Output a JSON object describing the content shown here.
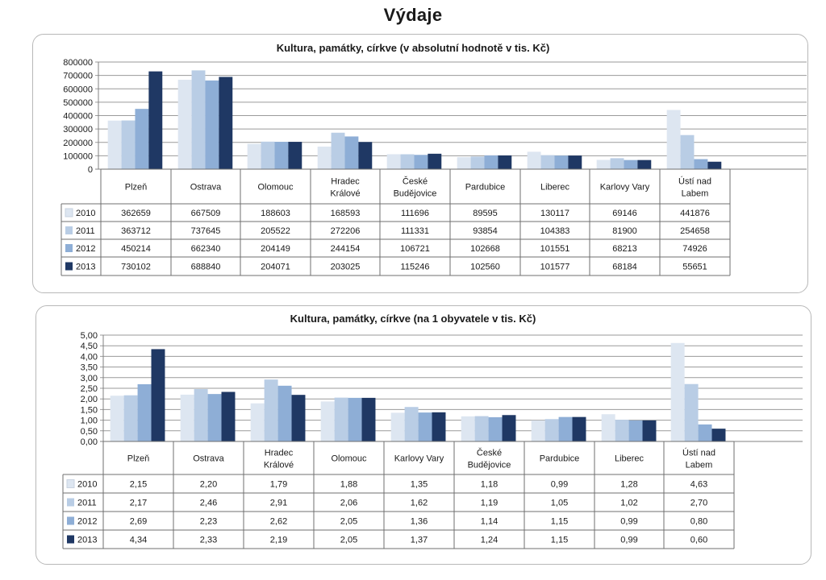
{
  "page": {
    "title": "Výdaje"
  },
  "chart_data": [
    {
      "type": "bar",
      "title": "Kultura, památky, církve (v absolutní hodnotě v tis. Kč)",
      "categories": [
        "Plzeň",
        "Ostrava",
        "Olomouc",
        "Hradec\nKrálové",
        "České\nBudějovice",
        "Pardubice",
        "Liberec",
        "Karlovy Vary",
        "Ústí nad\nLabem"
      ],
      "series": [
        {
          "name": "2010",
          "color": "#dde6f1",
          "values": [
            362659,
            667509,
            188603,
            168593,
            111696,
            89595,
            130117,
            69146,
            441876
          ]
        },
        {
          "name": "2011",
          "color": "#b9cde5",
          "values": [
            363712,
            737645,
            205522,
            272206,
            111331,
            93854,
            104383,
            81900,
            254658
          ]
        },
        {
          "name": "2012",
          "color": "#8eaed6",
          "values": [
            450214,
            662340,
            204149,
            244154,
            106721,
            102668,
            101551,
            68213,
            74926
          ]
        },
        {
          "name": "2013",
          "color": "#1f3864",
          "values": [
            730102,
            688840,
            204071,
            203025,
            115246,
            102560,
            101577,
            68184,
            55651
          ]
        }
      ],
      "yticks": [
        "0",
        "100000",
        "200000",
        "300000",
        "400000",
        "500000",
        "600000",
        "700000",
        "800000"
      ],
      "ylim": [
        0,
        800000
      ],
      "grid": true,
      "legend": "data table",
      "table_values": [
        [
          "362659",
          "667509",
          "188603",
          "168593",
          "111696",
          "89595",
          "130117",
          "69146",
          "441876"
        ],
        [
          "363712",
          "737645",
          "205522",
          "272206",
          "111331",
          "93854",
          "104383",
          "81900",
          "254658"
        ],
        [
          "450214",
          "662340",
          "204149",
          "244154",
          "106721",
          "102668",
          "101551",
          "68213",
          "74926"
        ],
        [
          "730102",
          "688840",
          "204071",
          "203025",
          "115246",
          "102560",
          "101577",
          "68184",
          "55651"
        ]
      ]
    },
    {
      "type": "bar",
      "title": "Kultura, památky, církve (na 1 obyvatele v tis. Kč)",
      "categories": [
        "Plzeň",
        "Ostrava",
        "Hradec\nKrálové",
        "Olomouc",
        "Karlovy Vary",
        "České\nBudějovice",
        "Pardubice",
        "Liberec",
        "Ústí nad\nLabem"
      ],
      "series": [
        {
          "name": "2010",
          "color": "#dde6f1",
          "values": [
            2.15,
            2.2,
            1.79,
            1.88,
            1.35,
            1.18,
            0.99,
            1.28,
            4.63
          ]
        },
        {
          "name": "2011",
          "color": "#b9cde5",
          "values": [
            2.17,
            2.46,
            2.91,
            2.06,
            1.62,
            1.19,
            1.05,
            1.02,
            2.7
          ]
        },
        {
          "name": "2012",
          "color": "#8eaed6",
          "values": [
            2.69,
            2.23,
            2.62,
            2.05,
            1.36,
            1.14,
            1.15,
            0.99,
            0.8
          ]
        },
        {
          "name": "2013",
          "color": "#1f3864",
          "values": [
            4.34,
            2.33,
            2.19,
            2.05,
            1.37,
            1.24,
            1.15,
            0.99,
            0.6
          ]
        }
      ],
      "yticks": [
        "0,00",
        "0,50",
        "1,00",
        "1,50",
        "2,00",
        "2,50",
        "3,00",
        "3,50",
        "4,00",
        "4,50",
        "5,00"
      ],
      "ylim": [
        0,
        5
      ],
      "grid": true,
      "legend": "data table",
      "table_values": [
        [
          "2,15",
          "2,20",
          "1,79",
          "1,88",
          "1,35",
          "1,18",
          "0,99",
          "1,28",
          "4,63"
        ],
        [
          "2,17",
          "2,46",
          "2,91",
          "2,06",
          "1,62",
          "1,19",
          "1,05",
          "1,02",
          "2,70"
        ],
        [
          "2,69",
          "2,23",
          "2,62",
          "2,05",
          "1,36",
          "1,14",
          "1,15",
          "0,99",
          "0,80"
        ],
        [
          "4,34",
          "2,33",
          "2,19",
          "2,05",
          "1,37",
          "1,24",
          "1,15",
          "0,99",
          "0,60"
        ]
      ]
    }
  ]
}
